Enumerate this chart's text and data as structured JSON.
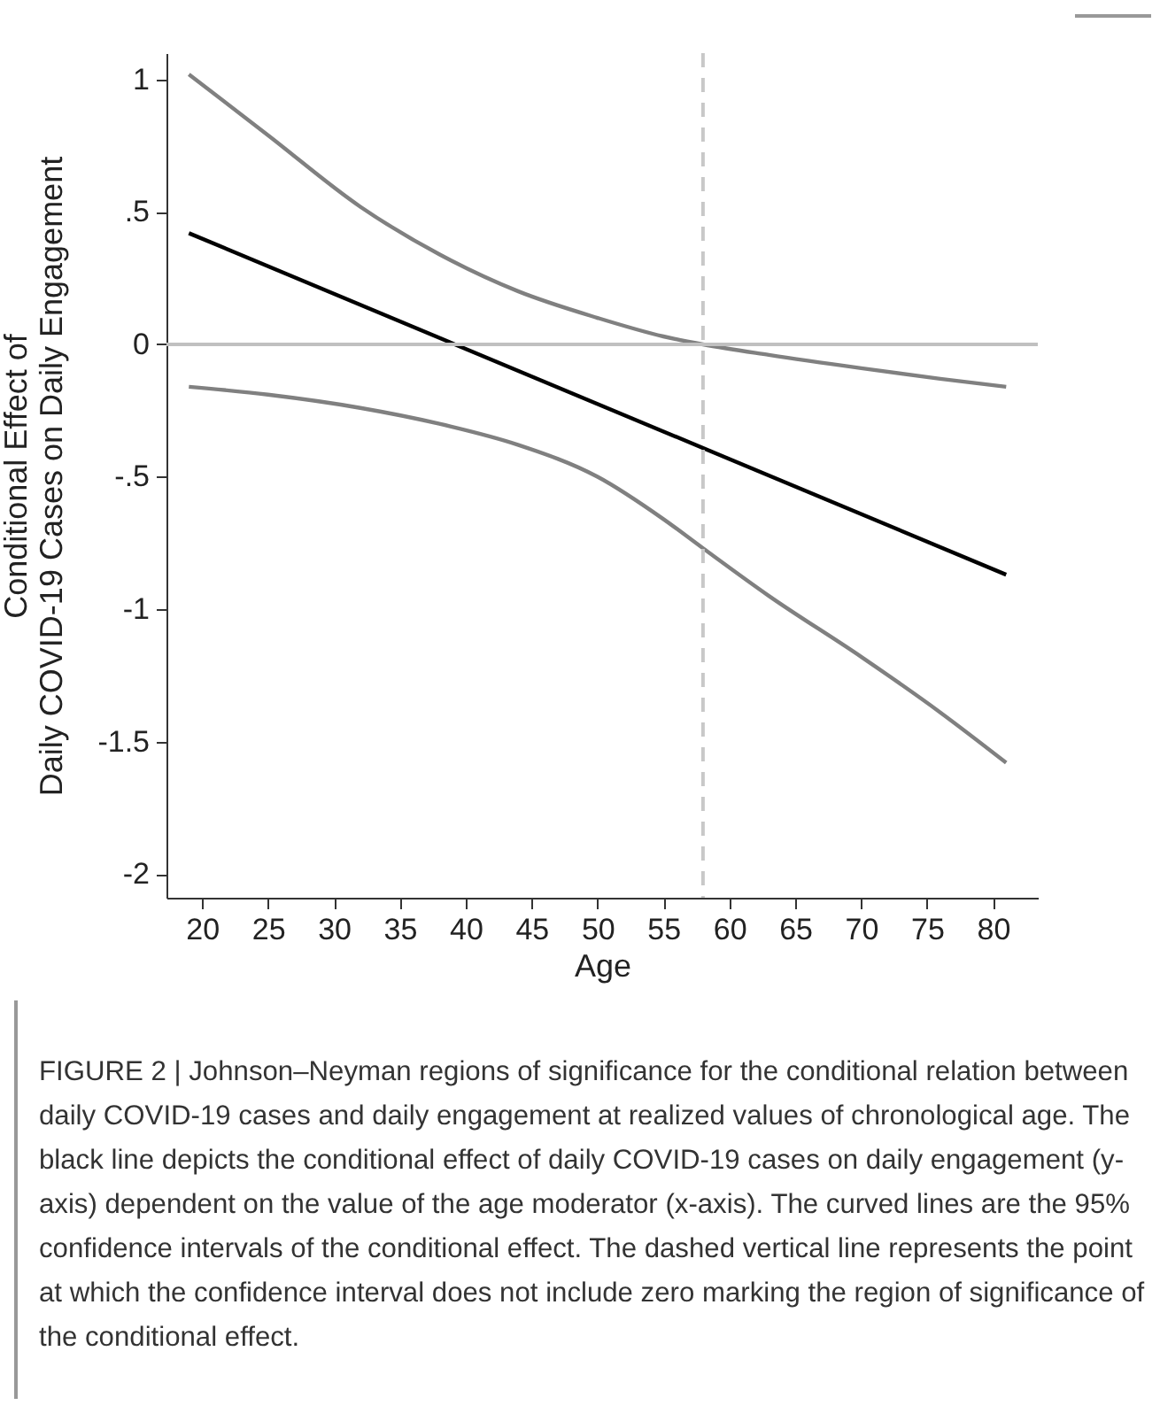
{
  "chart_data": {
    "type": "line",
    "xlabel": "Age",
    "ylabel": "Conditional Effect of\nDaily COVID-19 Cases on Daily Engagement",
    "annotations": [
      "FIGURE 2 | Johnson–Neyman regions of significance for the conditional relation between daily COVID-19 cases and daily engagement at realized values of chronological age. The black line depicts the conditional effect of daily COVID-19 cases on daily engagement (y-axis) dependent on the value of the age moderator (x-axis). The curved lines are the 95% confidence intervals of the conditional effect. The dashed vertical line represents the point at which the confidence interval does not include zero marking the region of significance of the conditional effect."
    ],
    "series": [
      {
        "color": "#000000",
        "x": [
          19,
          81
        ],
        "values": [
          0.42,
          -0.87
        ]
      },
      {
        "color": "#808080",
        "x": [
          19,
          25,
          32,
          38,
          44,
          50,
          55,
          58,
          63,
          70,
          76,
          81
        ],
        "values": [
          1.02,
          0.79,
          0.52,
          0.34,
          0.2,
          0.1,
          0.03,
          0,
          -0.04,
          -0.09,
          -0.13,
          -0.16
        ]
      },
      {
        "color": "#808080",
        "x": [
          19,
          25,
          32,
          38,
          44,
          50,
          55,
          58,
          63,
          70,
          76,
          81
        ],
        "values": [
          -0.16,
          -0.19,
          -0.24,
          -0.3,
          -0.38,
          -0.5,
          -0.66,
          -0.77,
          -0.95,
          -1.18,
          -1.39,
          -1.58
        ]
      }
    ],
    "xlim": [
      17.3,
      83.4
    ],
    "xticks": [
      20,
      25,
      30,
      35,
      40,
      45,
      50,
      55,
      60,
      65,
      70,
      75,
      80
    ],
    "ylim": [
      -2.09,
      1.1
    ],
    "yticks": [
      {
        "value": -2,
        "label": "-2"
      },
      {
        "value": -1.5,
        "label": "-1.5"
      },
      {
        "value": -1,
        "label": "-1"
      },
      {
        "value": -0.5,
        "label": "-.5"
      },
      {
        "value": 0,
        "label": "0"
      },
      {
        "value": 0.5,
        "label": ".5"
      },
      {
        "value": 1,
        "label": "1"
      }
    ],
    "grid": false,
    "marker": "none",
    "line_style": "solid",
    "ref_lines": [
      {
        "axis": "y",
        "value": 0,
        "color": "#c0c0c0",
        "line_style": "solid"
      },
      {
        "axis": "x",
        "value": 58,
        "color": "#c8c8c8",
        "line_style": "dashed"
      }
    ]
  }
}
